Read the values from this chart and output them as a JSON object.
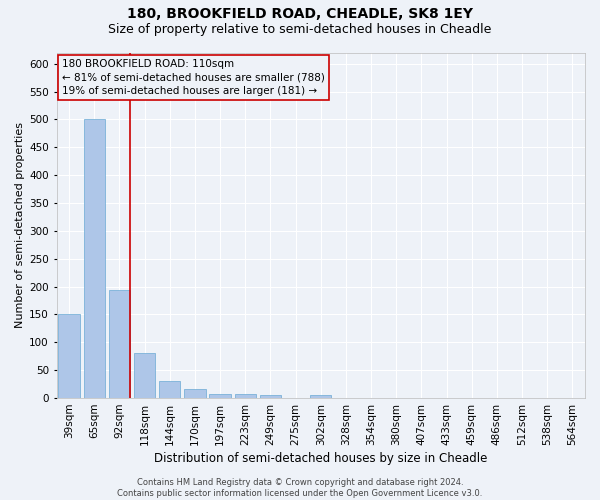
{
  "title1": "180, BROOKFIELD ROAD, CHEADLE, SK8 1EY",
  "title2": "Size of property relative to semi-detached houses in Cheadle",
  "xlabel": "Distribution of semi-detached houses by size in Cheadle",
  "ylabel": "Number of semi-detached properties",
  "categories": [
    "39sqm",
    "65sqm",
    "92sqm",
    "118sqm",
    "144sqm",
    "170sqm",
    "197sqm",
    "223sqm",
    "249sqm",
    "275sqm",
    "302sqm",
    "328sqm",
    "354sqm",
    "380sqm",
    "407sqm",
    "433sqm",
    "459sqm",
    "486sqm",
    "512sqm",
    "538sqm",
    "564sqm"
  ],
  "values": [
    150,
    500,
    193,
    80,
    30,
    17,
    8,
    8,
    5,
    0,
    5,
    0,
    0,
    0,
    0,
    0,
    0,
    0,
    0,
    0,
    0
  ],
  "bar_color": "#aec6e8",
  "bar_edge_color": "#6aaad4",
  "vline_x_idx": 2,
  "vline_color": "#cc0000",
  "annotation_text": "180 BROOKFIELD ROAD: 110sqm\n← 81% of semi-detached houses are smaller (788)\n19% of semi-detached houses are larger (181) →",
  "annotation_box_color": "#cc0000",
  "ylim": [
    0,
    620
  ],
  "yticks": [
    0,
    50,
    100,
    150,
    200,
    250,
    300,
    350,
    400,
    450,
    500,
    550,
    600
  ],
  "footer1": "Contains HM Land Registry data © Crown copyright and database right 2024.",
  "footer2": "Contains public sector information licensed under the Open Government Licence v3.0.",
  "bg_color": "#eef2f8",
  "grid_color": "#ffffff",
  "title1_fontsize": 10,
  "title2_fontsize": 9,
  "xlabel_fontsize": 8.5,
  "ylabel_fontsize": 8,
  "tick_fontsize": 7.5,
  "annotation_fontsize": 7.5,
  "footer_fontsize": 6
}
